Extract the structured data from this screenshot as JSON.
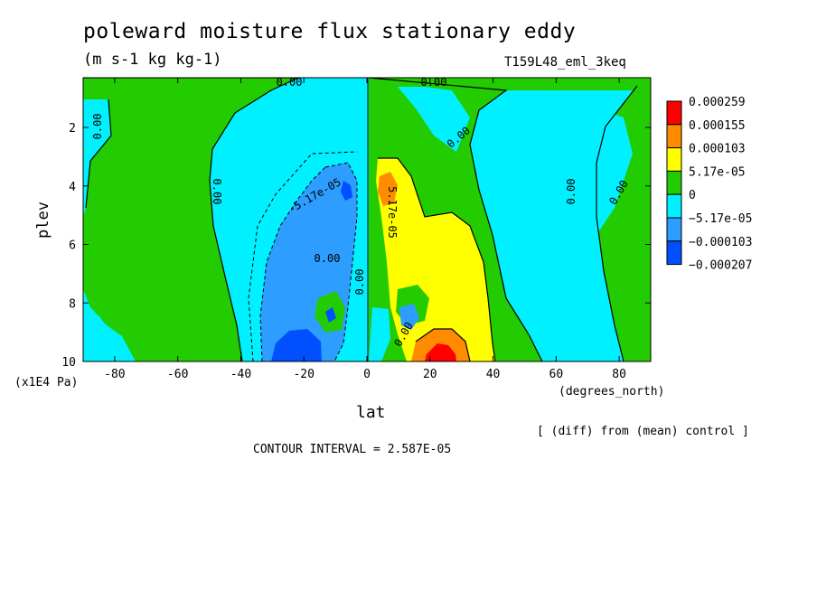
{
  "chart_data": {
    "type": "heatmap",
    "title": "poleward moisture flux stationary eddy",
    "units": "(m s-1 kg kg-1)",
    "experiment": "T159L48_eml_3keq",
    "xlabel": "lat",
    "xunits": "(degrees_north)",
    "ylabel": "plev",
    "yunits": "(x1E4 Pa)",
    "xlim": [
      -90,
      90
    ],
    "ylim": [
      10,
      0.3
    ],
    "xticks": [
      -80,
      -60,
      -40,
      -20,
      0,
      20,
      40,
      60,
      80
    ],
    "yticks": [
      2,
      4,
      6,
      8,
      10
    ],
    "legend": {
      "position": "right",
      "levels": [
        "0.000259",
        "0.000155",
        "0.000103",
        "5.17e-05",
        "0",
        "−5.17e-05",
        "−0.000103",
        "−0.000207"
      ],
      "colors": [
        "#ff0000",
        "#ff8c00",
        "#ffff00",
        "#22cc00",
        "#00f0ff",
        "#2d9dff",
        "#0050ff"
      ]
    },
    "contour_labels": [
      "0.00",
      "0.00",
      "0.00",
      "0.00",
      "0.00",
      "0.00",
      "0.00",
      "0.00",
      "0.00",
      "-5.17e-05",
      "5.17e-05",
      "0.00"
    ],
    "footnote": "[ (diff) from (mean) control ]",
    "contour_interval": "CONTOUR INTERVAL = 2.587E-05"
  }
}
